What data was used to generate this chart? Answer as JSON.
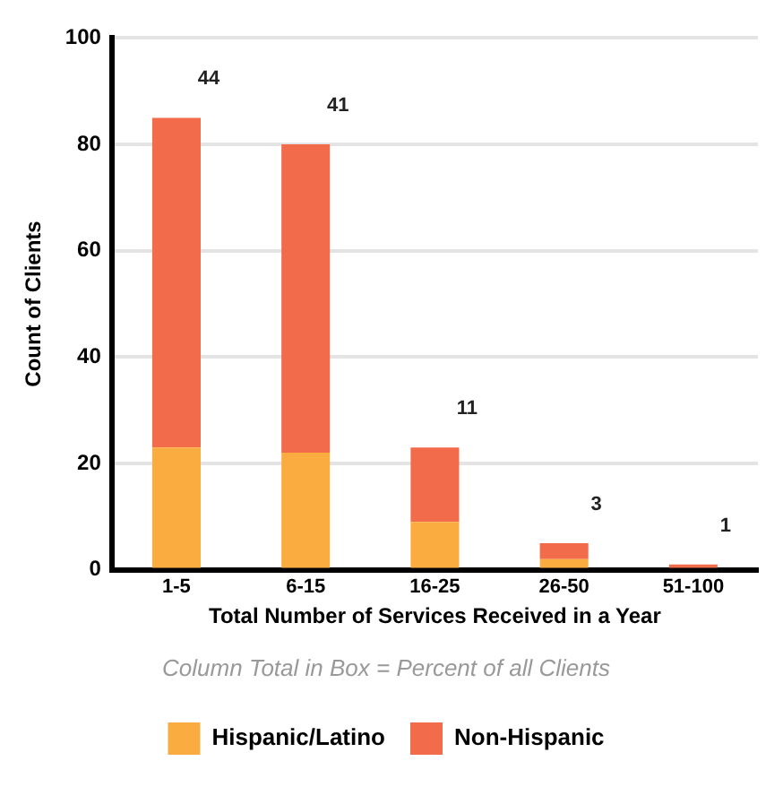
{
  "chart_data": {
    "type": "bar",
    "stacked": true,
    "categories": [
      "1-5",
      "6-15",
      "16-25",
      "26-50",
      "51-100"
    ],
    "series": [
      {
        "name": "Hispanic/Latino",
        "color": "#fbac41",
        "values": [
          23,
          22,
          9,
          2,
          0
        ]
      },
      {
        "name": "Non-Hispanic",
        "color": "#f26b4a",
        "values": [
          62,
          58,
          14,
          3,
          1
        ]
      }
    ],
    "xlabel": "Total Number of Services Received in a Year",
    "ylabel": "Count of Clients",
    "annotations": [
      "Column Total in Box = Percent of all Clients",
      {
        "text": "44",
        "x": "1-5",
        "y": 85
      },
      {
        "text": "41",
        "x": "6-15",
        "y": 80
      },
      {
        "text": "11",
        "x": "16-25",
        "y": 23
      },
      {
        "text": "3",
        "x": "26-50",
        "y": 5
      },
      {
        "text": "1",
        "x": "51-100",
        "y": 1
      }
    ],
    "ylim": [
      0,
      100
    ],
    "yticks": [
      0,
      20,
      40,
      60,
      80,
      100
    ],
    "grid": "y",
    "legend": "bottom"
  }
}
